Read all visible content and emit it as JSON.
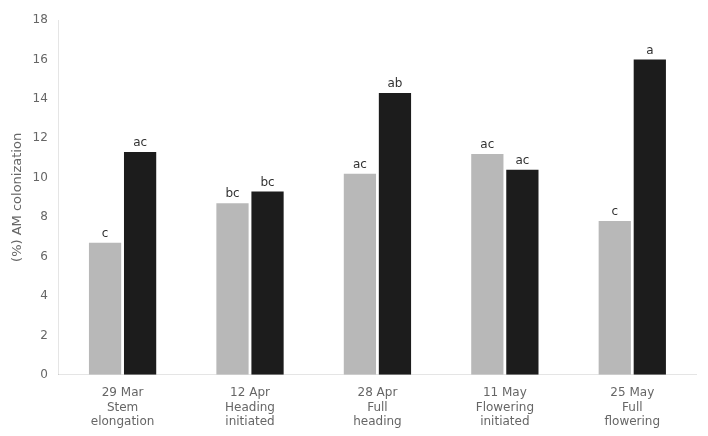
{
  "chart_data": {
    "type": "bar",
    "categories": [
      "29 Mar\nStem\nelongation",
      "12 Apr\nHeading\ninitiated",
      "28 Apr\nFull\nheading",
      "11 May\nFlowering\ninitiated",
      "25 May\nFull\nflowering"
    ],
    "series": [
      {
        "color": "#b8b8b8",
        "values": [
          6.7,
          8.7,
          10.2,
          11.2,
          7.8
        ],
        "annotations": [
          "c",
          "bc",
          "ac",
          "ac",
          "c"
        ]
      },
      {
        "color": "#1c1c1c",
        "values": [
          11.3,
          9.3,
          14.3,
          10.4,
          16.0
        ],
        "annotations": [
          "ac",
          "bc",
          "ab",
          "ac",
          "a"
        ]
      }
    ],
    "ylabel": "(%) AM colonization",
    "ylim": [
      0,
      18
    ],
    "yticks": [
      0,
      2,
      4,
      6,
      8,
      10,
      12,
      14,
      16,
      18
    ],
    "grid": false
  }
}
